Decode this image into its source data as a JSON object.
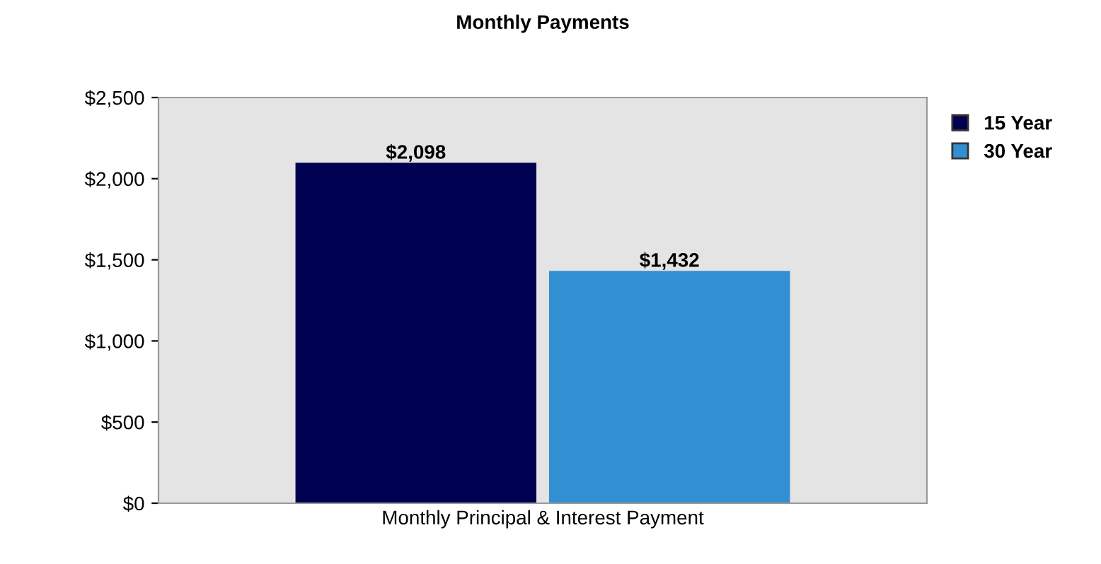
{
  "chart_data": {
    "type": "bar",
    "title": "Monthly Payments",
    "categories": [
      "Monthly Principal & Interest Payment"
    ],
    "series": [
      {
        "name": "15 Year",
        "color": "#000050",
        "values": [
          2098
        ],
        "value_labels": [
          "$2,098"
        ]
      },
      {
        "name": "30 Year",
        "color": "#3290d2",
        "values": [
          1432
        ],
        "value_labels": [
          "$1,432"
        ]
      }
    ],
    "ylim": [
      0,
      2500
    ],
    "yticks": [
      {
        "value": 0,
        "label": "$0"
      },
      {
        "value": 500,
        "label": "$500"
      },
      {
        "value": 1000,
        "label": "$1,000"
      },
      {
        "value": 1500,
        "label": "$1,500"
      },
      {
        "value": 2000,
        "label": "$2,000"
      },
      {
        "value": 2500,
        "label": "$2,500"
      }
    ],
    "grid": false,
    "legend": "top right"
  }
}
